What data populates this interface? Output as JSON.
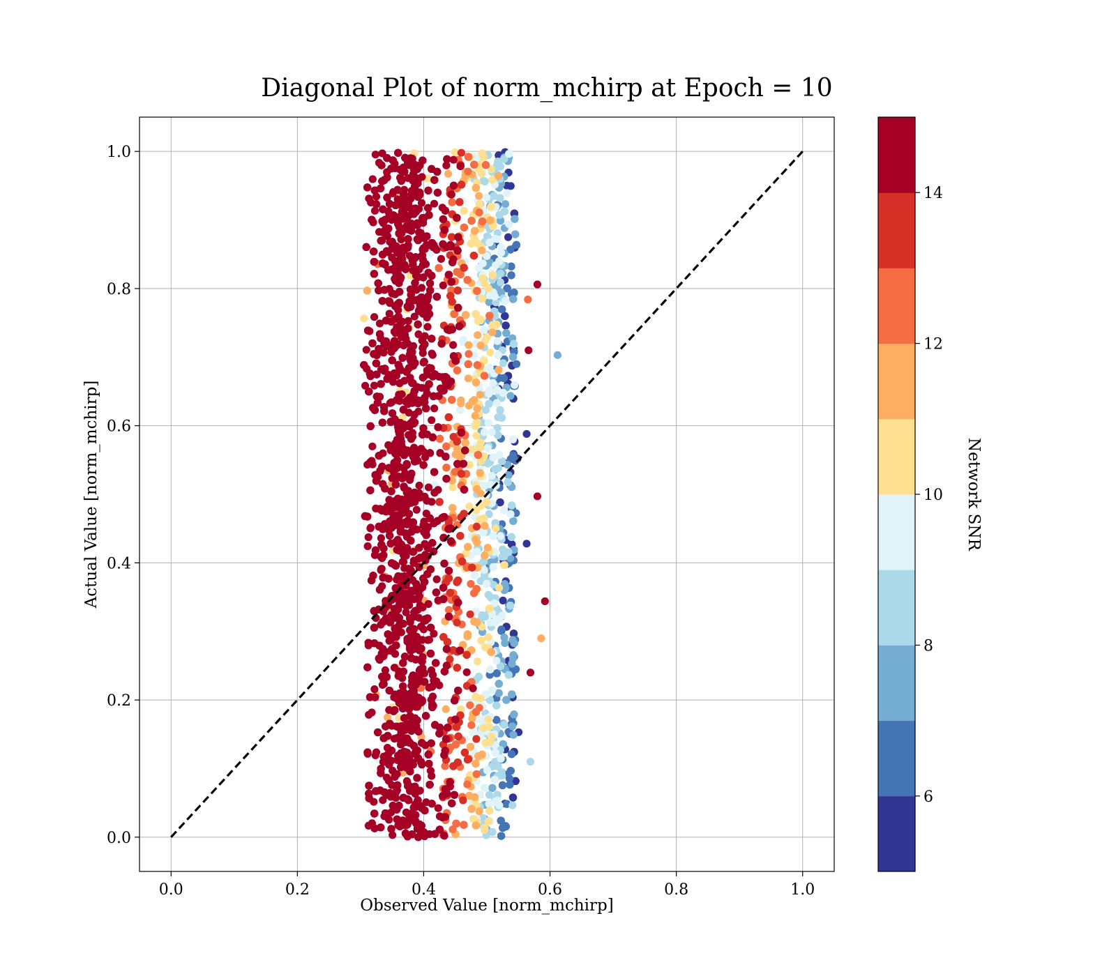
{
  "chart_data": {
    "type": "scatter",
    "title": "Diagonal Plot of norm_mchirp at Epoch = 10",
    "xlabel": "Observed Value [norm_mchirp]",
    "ylabel": "Actual Value [norm_mchirp]",
    "xlim": [
      -0.05,
      1.05
    ],
    "ylim": [
      -0.05,
      1.05
    ],
    "x_ticks": [
      "0.0",
      "0.2",
      "0.4",
      "0.6",
      "0.8",
      "1.0"
    ],
    "y_ticks": [
      "0.0",
      "0.2",
      "0.4",
      "0.6",
      "0.8",
      "1.0"
    ],
    "grid": true,
    "reference_line": {
      "x": [
        0.0,
        1.0
      ],
      "y": [
        0.0,
        1.0
      ],
      "style": "dashed",
      "color": "#000000"
    },
    "point_cloud": {
      "x_range": [
        0.3,
        0.56
      ],
      "y_range": [
        0.0,
        1.0
      ],
      "approx_points": 9000,
      "snr_trend": "high SNR (>14) concentrated at x 0.31-0.43; SNR decreases toward x 0.55"
    },
    "outliers": [
      {
        "x": 0.58,
        "y": 0.806,
        "snr": 15
      },
      {
        "x": 0.565,
        "y": 0.784,
        "snr": 12.5
      },
      {
        "x": 0.612,
        "y": 0.703,
        "snr": 7.5
      },
      {
        "x": 0.566,
        "y": 0.71,
        "snr": 15
      },
      {
        "x": 0.58,
        "y": 0.497,
        "snr": 15
      },
      {
        "x": 0.592,
        "y": 0.344,
        "snr": 15
      },
      {
        "x": 0.586,
        "y": 0.29,
        "snr": 11.5
      },
      {
        "x": 0.569,
        "y": 0.24,
        "snr": 15
      },
      {
        "x": 0.569,
        "y": 0.11,
        "snr": 8.5
      },
      {
        "x": 0.563,
        "y": 0.588,
        "snr": 5.5
      },
      {
        "x": 0.563,
        "y": 0.428,
        "snr": 5.5
      }
    ],
    "colorbar": {
      "label": "Network SNR",
      "range": [
        5,
        15
      ],
      "ticks": [
        "6",
        "8",
        "10",
        "12",
        "14"
      ],
      "colors": [
        "#313695",
        "#4575b4",
        "#74add1",
        "#abd9e9",
        "#e0f3f8",
        "#fee090",
        "#fdae61",
        "#f46d43",
        "#d73027",
        "#a50026"
      ],
      "levels": 10
    }
  }
}
